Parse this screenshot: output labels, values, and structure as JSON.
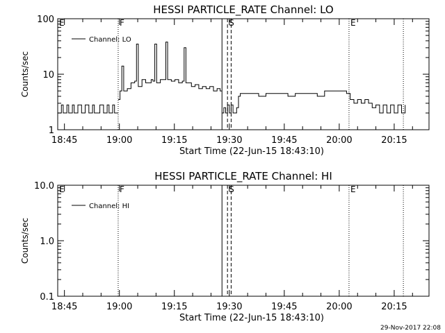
{
  "footer": {
    "date_stamp": "29-Nov-2017 22:08"
  },
  "chart_data": [
    {
      "type": "line",
      "title": "HESSI PARTICLE_RATE Channel: LO",
      "xlabel": "Start Time (22-Jun-15 18:43:10)",
      "ylabel": "Counts/sec",
      "yscale": "log",
      "ylim": [
        1,
        100
      ],
      "xlim": [
        "18:43:10",
        "20:24:30"
      ],
      "y_tick_labels": [
        "1",
        "10",
        "100"
      ],
      "x_tick_labels": [
        "18:45",
        "19:00",
        "19:15",
        "19:30",
        "19:45",
        "20:00",
        "20:15"
      ],
      "legend": {
        "position": "top-left",
        "entries": [
          "Channel: LO"
        ]
      },
      "markers": [
        {
          "label": "E",
          "time": "18:43:10",
          "style": "dotted"
        },
        {
          "label": "F",
          "time": "18:59:40",
          "style": "dotted"
        },
        {
          "label": "",
          "time": "19:28:00",
          "style": "solid"
        },
        {
          "label": "S",
          "time": "19:29:30",
          "style": "dashed"
        },
        {
          "label": "",
          "time": "19:30:30",
          "style": "dashed"
        },
        {
          "label": "E",
          "time": "20:02:40",
          "style": "dotted"
        },
        {
          "label": "",
          "time": "20:17:30",
          "style": "dotted"
        }
      ],
      "series": [
        {
          "segments": [
            [
              [
                "18:43:10",
                2
              ],
              [
                "18:44:10",
                2.8
              ],
              [
                "18:44:40",
                2
              ],
              [
                "18:45:40",
                2.8
              ],
              [
                "18:46:10",
                2
              ],
              [
                "18:47:10",
                2.8
              ],
              [
                "18:47:40",
                2
              ],
              [
                "18:48:40",
                2.8
              ],
              [
                "18:49:40",
                2
              ],
              [
                "18:50:40",
                2.8
              ],
              [
                "18:51:40",
                2
              ],
              [
                "18:52:40",
                2.8
              ],
              [
                "18:53:10",
                2
              ],
              [
                "18:54:10",
                2
              ],
              [
                "18:54:40",
                2.8
              ],
              [
                "18:55:40",
                2
              ],
              [
                "18:56:40",
                2.8
              ],
              [
                "18:57:10",
                2
              ],
              [
                "18:58:10",
                2.8
              ],
              [
                "18:58:40",
                2
              ],
              [
                "18:59:40",
                2
              ]
            ],
            [
              [
                "18:59:40",
                3.5
              ],
              [
                "19:00:10",
                5
              ],
              [
                "19:00:40",
                14
              ],
              [
                "19:01:10",
                5
              ],
              [
                "19:02:10",
                5.5
              ],
              [
                "19:03:10",
                7
              ],
              [
                "19:04:10",
                7.5
              ],
              [
                "19:04:40",
                35
              ],
              [
                "19:05:10",
                6
              ],
              [
                "19:06:10",
                8
              ],
              [
                "19:07:10",
                7
              ],
              [
                "19:08:40",
                8
              ],
              [
                "19:09:10",
                7.5
              ],
              [
                "19:09:40",
                35
              ],
              [
                "19:10:10",
                7
              ],
              [
                "19:11:10",
                8
              ],
              [
                "19:12:40",
                38
              ],
              [
                "19:13:10",
                8
              ],
              [
                "19:14:10",
                7.5
              ],
              [
                "19:15:10",
                8
              ],
              [
                "19:16:10",
                7
              ],
              [
                "19:17:10",
                7.5
              ],
              [
                "19:17:40",
                30
              ],
              [
                "19:18:10",
                7
              ],
              [
                "19:19:40",
                6
              ],
              [
                "19:20:40",
                6.5
              ],
              [
                "19:21:40",
                5.5
              ],
              [
                "19:22:40",
                6
              ],
              [
                "19:23:40",
                5.5
              ],
              [
                "19:24:40",
                6
              ],
              [
                "19:25:40",
                5
              ],
              [
                "19:26:40",
                5.5
              ],
              [
                "19:27:30",
                5
              ],
              [
                "19:28:00",
                5
              ]
            ],
            [
              [
                "19:28:00",
                2
              ],
              [
                "19:28:30",
                2.5
              ],
              [
                "19:29:00",
                2
              ],
              [
                "19:29:30",
                2.8
              ],
              [
                "19:30:00",
                2
              ],
              [
                "19:30:30",
                2.8
              ],
              [
                "19:31:00",
                2
              ],
              [
                "19:31:30",
                2
              ],
              [
                "19:32:00",
                2.5
              ],
              [
                "19:32:30",
                4
              ],
              [
                "19:33:00",
                4.5
              ],
              [
                "19:35:00",
                4.5
              ],
              [
                "19:37:00",
                4.5
              ],
              [
                "19:38:00",
                4
              ],
              [
                "19:40:00",
                4.5
              ],
              [
                "19:42:00",
                4.5
              ],
              [
                "19:44:00",
                4.5
              ],
              [
                "19:46:00",
                4
              ],
              [
                "19:48:00",
                4.5
              ],
              [
                "19:50:00",
                4.5
              ],
              [
                "19:52:00",
                4.5
              ],
              [
                "19:54:00",
                4
              ],
              [
                "19:56:00",
                5
              ],
              [
                "19:58:00",
                5
              ],
              [
                "20:00:00",
                5
              ],
              [
                "20:01:00",
                5
              ],
              [
                "20:02:00",
                4.5
              ],
              [
                "20:03:00",
                3.5
              ],
              [
                "20:04:00",
                3
              ],
              [
                "20:05:00",
                3.5
              ],
              [
                "20:06:00",
                3
              ],
              [
                "20:07:00",
                3.5
              ],
              [
                "20:08:00",
                3
              ],
              [
                "20:09:00",
                2.5
              ],
              [
                "20:10:00",
                2.8
              ],
              [
                "20:11:00",
                2
              ],
              [
                "20:12:00",
                2.8
              ],
              [
                "20:13:00",
                2
              ],
              [
                "20:14:00",
                2.8
              ],
              [
                "20:15:00",
                2
              ],
              [
                "20:16:00",
                2.8
              ],
              [
                "20:17:00",
                2
              ],
              [
                "20:18:00",
                2.8
              ]
            ]
          ]
        }
      ]
    },
    {
      "type": "line",
      "title": "HESSI PARTICLE_RATE Channel: HI",
      "xlabel": "Start Time (22-Jun-15 18:43:10)",
      "ylabel": "Counts/sec",
      "yscale": "log",
      "ylim": [
        0.1,
        10
      ],
      "xlim": [
        "18:43:10",
        "20:24:30"
      ],
      "y_tick_labels": [
        "0.1",
        "1.0",
        "10.0"
      ],
      "x_tick_labels": [
        "18:45",
        "19:00",
        "19:15",
        "19:30",
        "19:45",
        "20:00",
        "20:15"
      ],
      "legend": {
        "position": "top-left",
        "entries": [
          "Channel: HI"
        ]
      },
      "markers": [
        {
          "label": "E",
          "time": "18:43:10",
          "style": "dotted"
        },
        {
          "label": "F",
          "time": "18:59:40",
          "style": "dotted"
        },
        {
          "label": "",
          "time": "19:28:00",
          "style": "solid"
        },
        {
          "label": "S",
          "time": "19:29:30",
          "style": "dashed"
        },
        {
          "label": "",
          "time": "19:30:30",
          "style": "dashed"
        },
        {
          "label": "E",
          "time": "20:02:40",
          "style": "dotted"
        },
        {
          "label": "",
          "time": "20:17:30",
          "style": "dotted"
        }
      ],
      "series": [
        {
          "segments": []
        }
      ]
    }
  ]
}
